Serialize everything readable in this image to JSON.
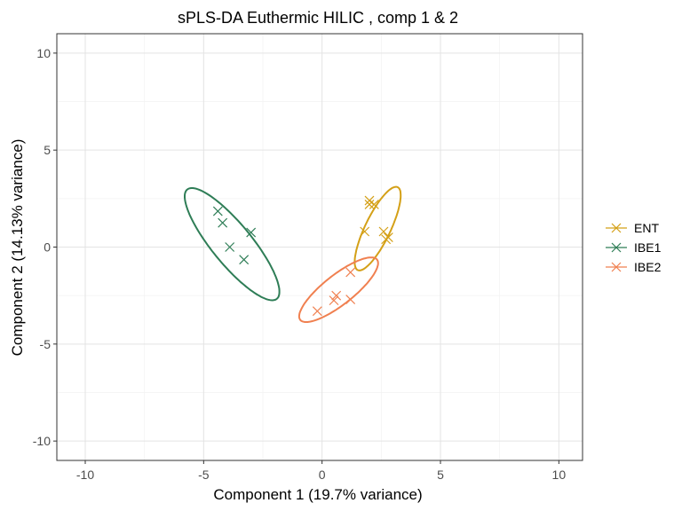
{
  "chart_data": {
    "type": "scatter",
    "title": "sPLS-DA Euthermic HILIC , comp 1 & 2",
    "xlabel": "Component 1 (19.7% variance)",
    "ylabel": "Component 2 (14.13% variance)",
    "xlim": [
      -11.2,
      11.0
    ],
    "ylim": [
      -11.0,
      11.0
    ],
    "xticks": [
      -10,
      -5,
      0,
      5,
      10
    ],
    "yticks": [
      -10,
      -5,
      0,
      5,
      10
    ],
    "xtick_labels": [
      "-10",
      "-5",
      "0",
      "5",
      "10"
    ],
    "ytick_labels": [
      "-10",
      "-5",
      "0",
      "5",
      "10"
    ],
    "grid": true,
    "legend_position": "right",
    "marker": "x",
    "series": [
      {
        "name": "ENT",
        "color": "#D4A017",
        "points": [
          [
            2.0,
            2.4
          ],
          [
            2.0,
            2.2
          ],
          [
            2.2,
            2.2
          ],
          [
            1.8,
            0.8
          ],
          [
            2.6,
            0.8
          ],
          [
            2.8,
            0.5
          ],
          [
            2.7,
            0.4
          ]
        ],
        "ellipse": {
          "cx": 2.35,
          "cy": 0.95,
          "rx": 2.3,
          "ry": 0.55,
          "angle_deg": 69
        }
      },
      {
        "name": "IBE1",
        "color": "#2E7D56",
        "points": [
          [
            -4.4,
            1.85
          ],
          [
            -4.2,
            1.25
          ],
          [
            -3.9,
            0.0
          ],
          [
            -3.0,
            0.75
          ],
          [
            -3.3,
            -0.65
          ]
        ],
        "ellipse": {
          "cx": -3.8,
          "cy": 0.15,
          "rx": 3.4,
          "ry": 0.9,
          "angle_deg": -57
        }
      },
      {
        "name": "IBE2",
        "color": "#F08050",
        "points": [
          [
            1.2,
            -1.3
          ],
          [
            0.6,
            -2.5
          ],
          [
            0.5,
            -2.75
          ],
          [
            1.2,
            -2.7
          ],
          [
            -0.2,
            -3.3
          ]
        ],
        "ellipse": {
          "cx": 0.7,
          "cy": -2.2,
          "rx": 2.25,
          "ry": 0.7,
          "angle_deg": 45
        }
      }
    ]
  }
}
